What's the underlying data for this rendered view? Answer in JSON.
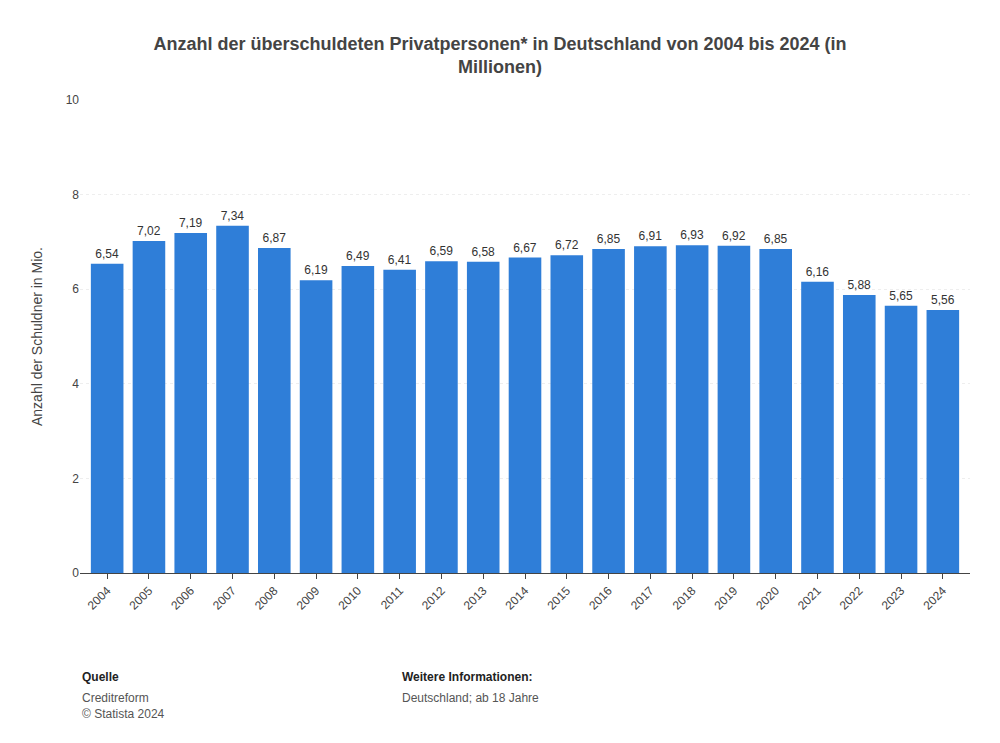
{
  "chart_data": {
    "type": "bar",
    "title": "Anzahl der überschuldeten Privatpersonen* in Deutschland von 2004 bis 2024 (in\nMillionen)",
    "categories": [
      "2004",
      "2005",
      "2006",
      "2007",
      "2008",
      "2009",
      "2010",
      "2011",
      "2012",
      "2013",
      "2014",
      "2015",
      "2016",
      "2017",
      "2018",
      "2019",
      "2020",
      "2021",
      "2022",
      "2023",
      "2024"
    ],
    "values": [
      6.54,
      7.02,
      7.19,
      7.34,
      6.87,
      6.19,
      6.49,
      6.41,
      6.59,
      6.58,
      6.67,
      6.72,
      6.85,
      6.91,
      6.93,
      6.92,
      6.85,
      6.16,
      5.88,
      5.65,
      5.56
    ],
    "value_labels": [
      "6,54",
      "7,02",
      "7,19",
      "7,34",
      "6,87",
      "6,19",
      "6,49",
      "6,41",
      "6,59",
      "6,58",
      "6,67",
      "6,72",
      "6,85",
      "6,91",
      "6,93",
      "6,92",
      "6,85",
      "6,16",
      "5,88",
      "5,65",
      "5,56"
    ],
    "data_labels": true,
    "color": "#2f7ed8",
    "ylabel": "Anzahl der Schuldner in Mio.",
    "ylim": [
      0,
      10
    ],
    "yticks": [
      0,
      2,
      4,
      6,
      8,
      10
    ],
    "grid": true,
    "annotations": [
      {
        "label": "Quelle",
        "text": "Creditreform\n© Statista 2024"
      },
      {
        "label": "Weitere Informationen:",
        "text": "Deutschland; ab 18 Jahre"
      }
    ]
  }
}
